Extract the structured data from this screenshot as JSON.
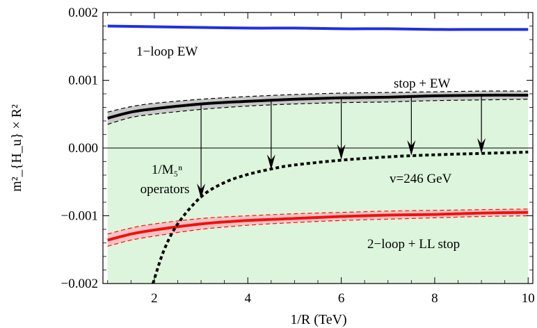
{
  "chart_data": {
    "type": "line",
    "xlabel": "1/R (TeV)",
    "ylabel": "m²_{H_u} × R²",
    "xlim": [
      0.9,
      10.1
    ],
    "ylim": [
      -0.002,
      0.002
    ],
    "x_ticks": [
      2,
      4,
      6,
      8,
      10
    ],
    "y_ticks": [
      -0.002,
      -0.001,
      0.0,
      0.001,
      0.002
    ],
    "x_tick_labels": [
      "2",
      "4",
      "6",
      "8",
      "10"
    ],
    "y_tick_labels": [
      "−0.002",
      "−0.001",
      "0.000",
      "0.001",
      "0.002"
    ],
    "grid": false,
    "colors": {
      "ew": "#1f2fe0",
      "stop_ew": "#000000",
      "stop_ew_band": "#c8c8c8",
      "two_loop": "#ee1111",
      "two_loop_band": "#f7c3c3",
      "allowed_region": "#dcf5dc",
      "vev_curve": "#000000"
    },
    "series": [
      {
        "name": "1−loop EW",
        "style": "solid",
        "x": [
          1,
          2,
          3,
          4,
          5,
          6,
          7,
          8,
          9,
          10
        ],
        "y": [
          0.0018,
          0.00179,
          0.00178,
          0.00177,
          0.00177,
          0.00176,
          0.00176,
          0.00175,
          0.00175,
          0.00175
        ]
      },
      {
        "name": "stop + EW",
        "style": "solid",
        "x": [
          1,
          1.5,
          2,
          3,
          4,
          5,
          6,
          7,
          8,
          9,
          10
        ],
        "y": [
          0.00044,
          0.00053,
          0.00058,
          0.00065,
          0.00069,
          0.00072,
          0.00074,
          0.00075,
          0.00077,
          0.00078,
          0.00078
        ],
        "band_upper": [
          0.00053,
          0.00061,
          0.00066,
          0.00072,
          0.00076,
          0.00079,
          0.00081,
          0.00082,
          0.00083,
          0.00084,
          0.00084
        ],
        "band_lower": [
          0.00035,
          0.00045,
          0.0005,
          0.00057,
          0.00062,
          0.00065,
          0.00067,
          0.00068,
          0.0007,
          0.00071,
          0.00072
        ]
      },
      {
        "name": "2−loop + LL stop",
        "style": "solid",
        "x": [
          1,
          1.5,
          2,
          3,
          4,
          5,
          6,
          7,
          8,
          9,
          10
        ],
        "y": [
          -0.00136,
          -0.00127,
          -0.00121,
          -0.00112,
          -0.00107,
          -0.00104,
          -0.00101,
          -0.00099,
          -0.00098,
          -0.00096,
          -0.00095
        ],
        "band_upper": [
          -0.00127,
          -0.00118,
          -0.00112,
          -0.00104,
          -0.001,
          -0.00097,
          -0.00095,
          -0.00093,
          -0.00092,
          -0.00091,
          -0.0009
        ],
        "band_lower": [
          -0.00145,
          -0.00136,
          -0.0013,
          -0.0012,
          -0.00114,
          -0.0011,
          -0.00107,
          -0.00105,
          -0.00103,
          -0.00101,
          -0.001
        ]
      },
      {
        "name": "v=246 GeV",
        "style": "dotted",
        "x": [
          1.97,
          2.2,
          2.5,
          3,
          3.5,
          4,
          4.5,
          5,
          6,
          7,
          8,
          9,
          10
        ],
        "y": [
          -0.002,
          -0.00152,
          -0.00112,
          -0.00072,
          -0.00051,
          -0.00039,
          -0.00031,
          -0.00025,
          -0.00018,
          -0.00013,
          -0.0001,
          -8e-05,
          -6e-05
        ]
      }
    ],
    "region": {
      "label_line1": "1/M₅ⁿ",
      "label_line2": "operators",
      "x_from": 1,
      "x_to": 10,
      "top_series": "stop + EW",
      "bottom": -0.002
    },
    "arrows": [
      {
        "x": 3.0,
        "from": 0.00065,
        "to": -0.00075
      },
      {
        "x": 4.5,
        "from": 0.00071,
        "to": -0.00032
      },
      {
        "x": 6.0,
        "from": 0.00074,
        "to": -0.00017
      },
      {
        "x": 7.5,
        "from": 0.00076,
        "to": -0.00011
      },
      {
        "x": 9.0,
        "from": 0.00078,
        "to": -8e-05
      }
    ]
  }
}
